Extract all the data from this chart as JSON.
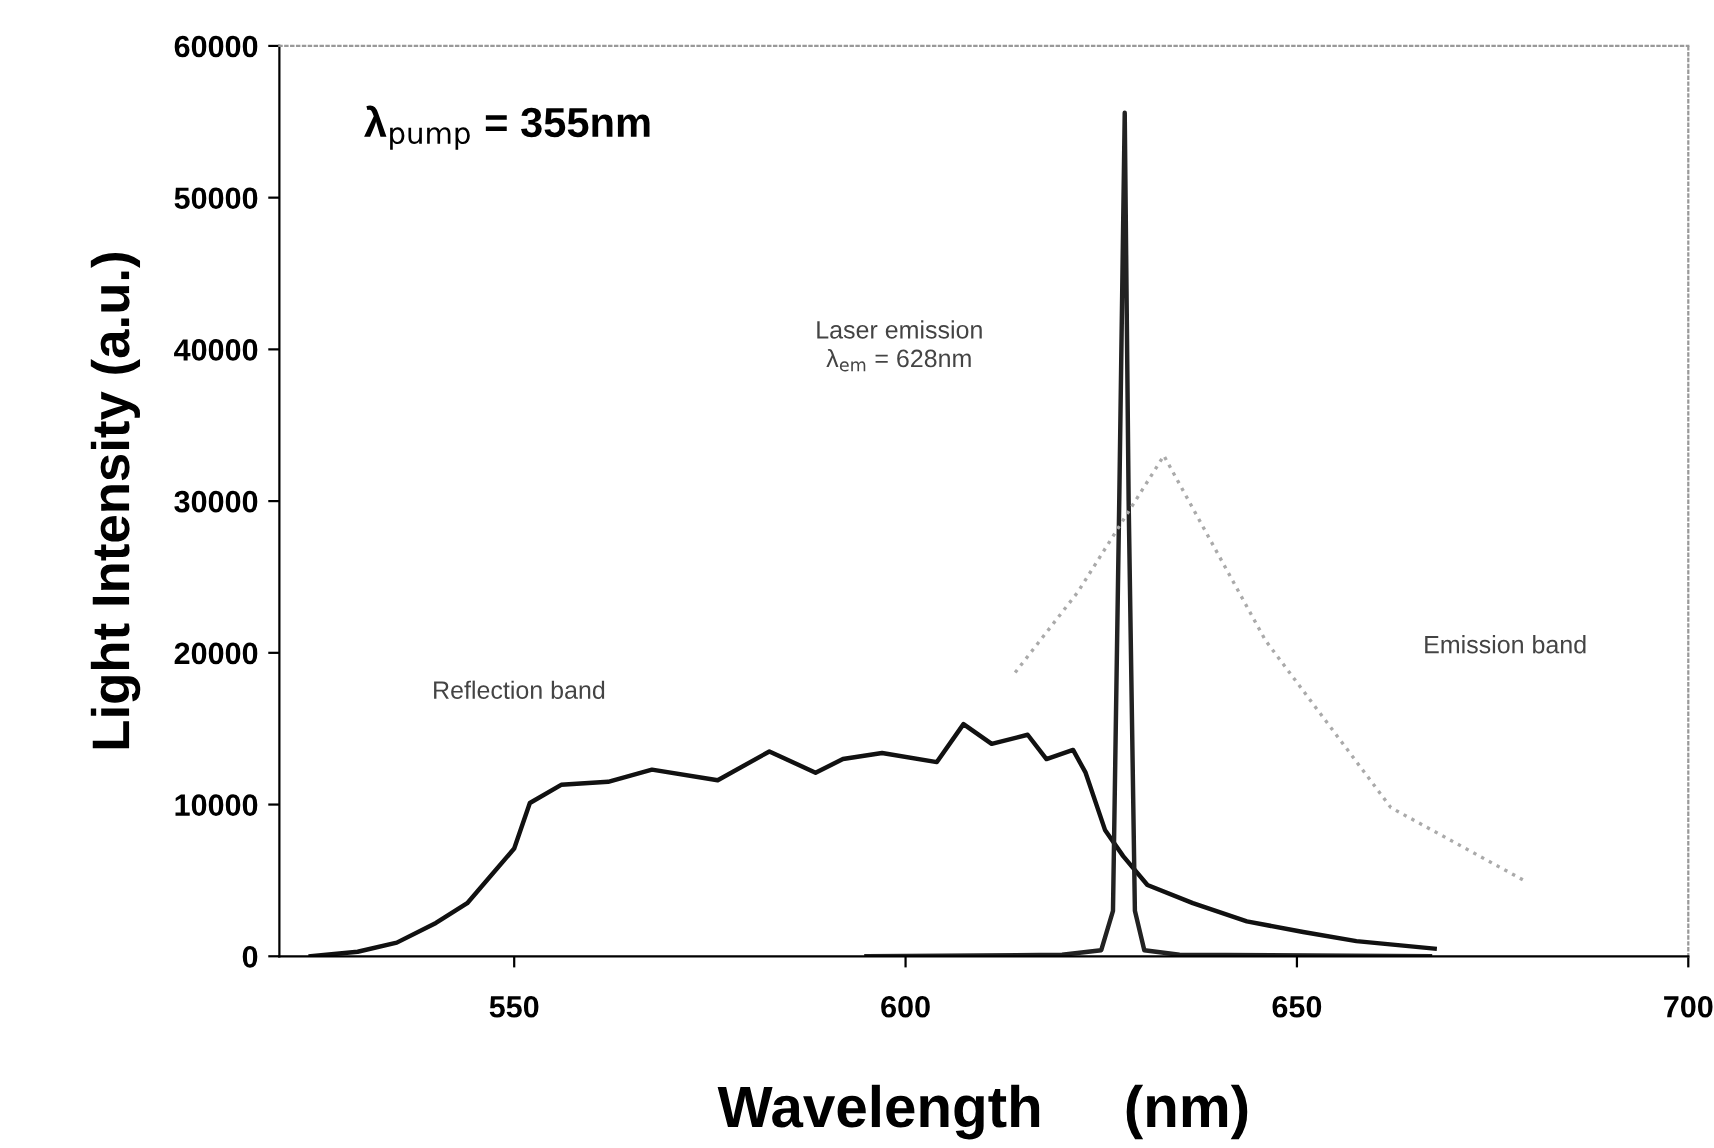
{
  "chart_data": {
    "type": "line",
    "xlabel": "Wavelength     (nm)",
    "ylabel": "Light Intensity (a.u.)",
    "xlim": [
      520,
      700
    ],
    "xticks": [
      550,
      600,
      650,
      700
    ],
    "ylim": [
      0,
      60000
    ],
    "yticks": [
      0,
      10000,
      20000,
      30000,
      40000,
      50000,
      60000
    ],
    "grid": false,
    "series": [
      {
        "color": "#111111",
        "line_style": "solid",
        "x": [
          524,
          530,
          535,
          540,
          544,
          550,
          552,
          556,
          562,
          567.6,
          576,
          582.6,
          588.5,
          592,
          597,
          604,
          607.4,
          611,
          615.6,
          618,
          621.4,
          623,
          625.5,
          627.8,
          630.9,
          636.7,
          643.6,
          650.8,
          657.6,
          667.6
        ],
        "values": [
          0,
          300,
          900,
          2200,
          3500,
          7100,
          10100,
          11300,
          11500,
          12300,
          11600,
          13500,
          12100,
          13000,
          13400,
          12800,
          15300,
          14000,
          14600,
          13000,
          13600,
          12100,
          8300,
          6600,
          4700,
          3500,
          2300,
          1600,
          1000,
          500
        ]
      },
      {
        "color": "#222222",
        "line_style": "solid",
        "x": [
          595,
          620,
          625,
          626.5,
          627.3,
          628,
          628.5,
          629.3,
          630.5,
          635,
          667
        ],
        "values": [
          0,
          100,
          400,
          3000,
          30000,
          55600,
          30000,
          3000,
          400,
          100,
          0
        ]
      },
      {
        "color": "#aaaaaa",
        "line_style": "dotted",
        "x": [
          614,
          622,
          633,
          646,
          662,
          679
        ],
        "values": [
          18700,
          24000,
          33000,
          20800,
          9800,
          5000
        ]
      }
    ],
    "annotations": [
      "λ$_{pump}$ = 355nm",
      "Laser emission\nλ$_{em}$ = 628nm",
      "Reflection band",
      "Emission band"
    ]
  }
}
